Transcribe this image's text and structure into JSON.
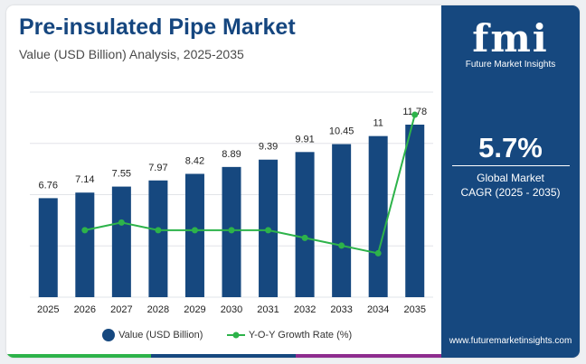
{
  "header": {
    "title": "Pre-insulated Pipe Market",
    "subtitle": "Value (USD Billion) Analysis, 2025-2035"
  },
  "panel": {
    "logo_text": "fmi",
    "logo_sub": "Future Market Insights",
    "cagr_value": "5.7%",
    "cagr_line1": "Global Market",
    "cagr_line2": "CAGR (2025 - 2035)",
    "url": "www.futuremarketinsights.com"
  },
  "legend": {
    "bar_label": "Value (USD Billion)",
    "line_label": "Y-O-Y Growth Rate (%)"
  },
  "colors": {
    "bar": "#16487f",
    "line": "#2db34a",
    "panel": "#16487f",
    "strip": [
      "#2db34a",
      "#16487f",
      "#8e2c8e"
    ]
  },
  "chart_data": {
    "type": "bar",
    "categories": [
      "2025",
      "2026",
      "2027",
      "2028",
      "2029",
      "2030",
      "2031",
      "2032",
      "2033",
      "2034",
      "2035"
    ],
    "series": [
      {
        "name": "Value (USD Billion)",
        "type": "bar",
        "values": [
          6.76,
          7.14,
          7.55,
          7.97,
          8.42,
          8.89,
          9.39,
          9.91,
          10.45,
          11,
          11.78
        ],
        "labels": [
          "6.76",
          "7.14",
          "7.55",
          "7.97",
          "8.42",
          "8.89",
          "9.39",
          "9.91",
          "10.45",
          "11",
          "11.78"
        ]
      },
      {
        "name": "Y-O-Y Growth Rate (%)",
        "type": "line",
        "x": [
          "2026",
          "2027",
          "2028",
          "2029",
          "2030",
          "2031",
          "2032",
          "2033",
          "2034",
          "2035"
        ],
        "values": [
          5.6,
          5.7,
          5.6,
          5.6,
          5.6,
          5.6,
          5.5,
          5.4,
          5.3,
          7.1
        ]
      }
    ],
    "ylim": [
      0,
      14
    ],
    "grid": true,
    "legend_position": "bottom"
  }
}
